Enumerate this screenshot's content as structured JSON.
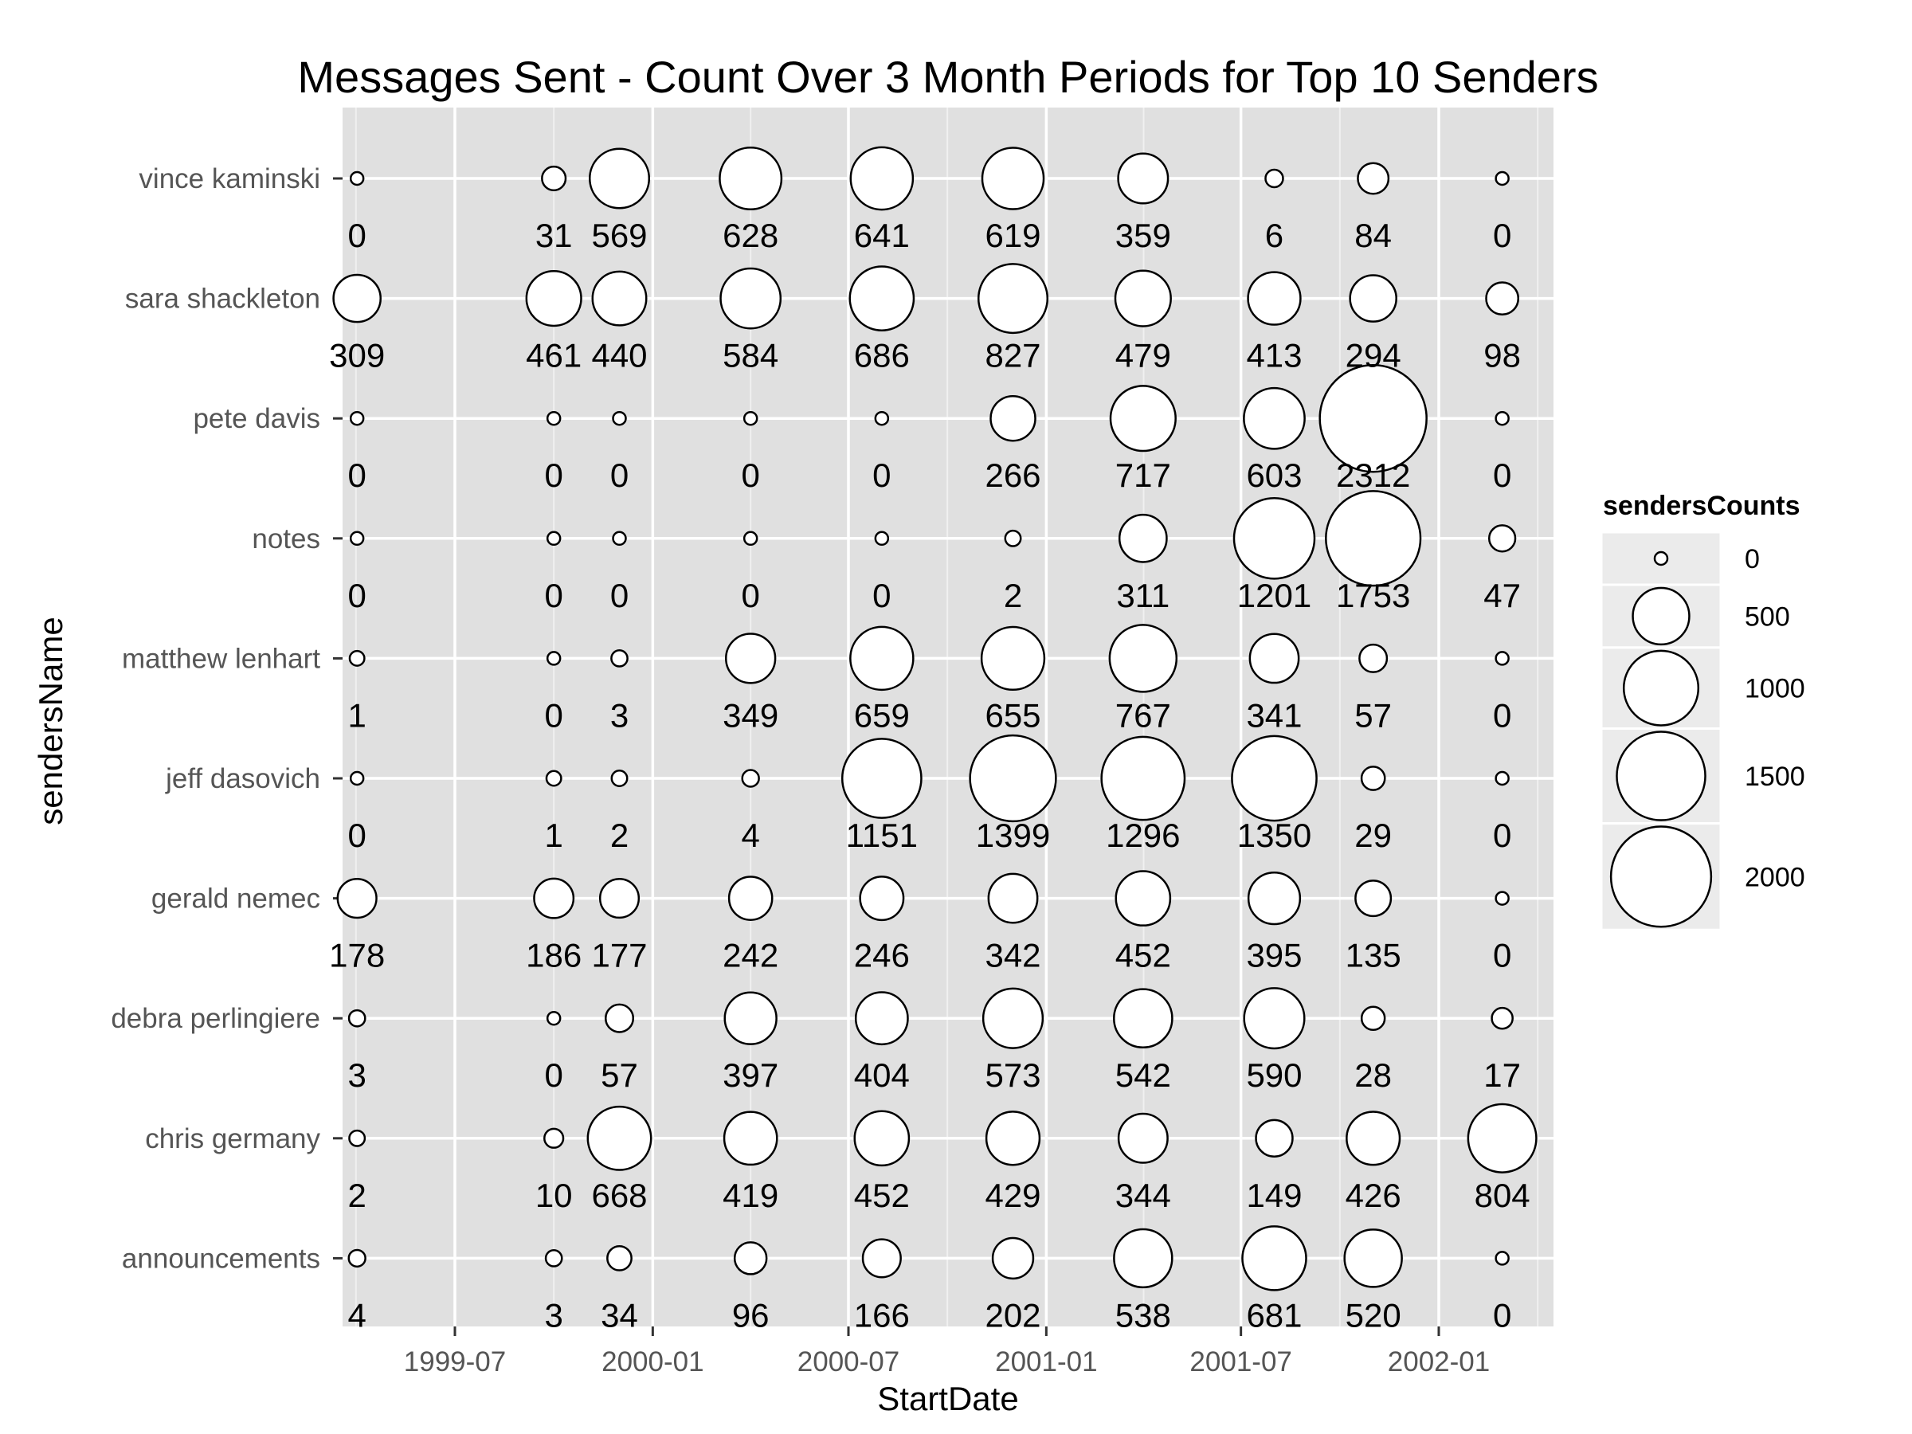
{
  "chart_data": {
    "type": "scatter",
    "title": "Messages Sent - Count Over 3 Month Periods for Top 10 Senders",
    "xlabel": "StartDate",
    "ylabel": "sendersName",
    "x_ticks": [
      "1999-07",
      "2000-01",
      "2000-07",
      "2001-01",
      "2001-07",
      "2002-01"
    ],
    "periods": [
      "1999-04",
      "1999-10",
      "1999-12",
      "2000-04",
      "2000-08",
      "2000-12",
      "2001-04",
      "2001-08",
      "2001-11",
      "2002-03"
    ],
    "senders": [
      {
        "name": "vince kaminski",
        "values": [
          0,
          31,
          569,
          628,
          641,
          619,
          359,
          6,
          84,
          0
        ]
      },
      {
        "name": "sara shackleton",
        "values": [
          309,
          461,
          440,
          584,
          686,
          827,
          479,
          413,
          294,
          98
        ]
      },
      {
        "name": "pete davis",
        "values": [
          0,
          0,
          0,
          0,
          0,
          266,
          717,
          603,
          2312,
          0
        ]
      },
      {
        "name": "notes",
        "values": [
          0,
          0,
          0,
          0,
          0,
          2,
          311,
          1201,
          1753,
          47
        ]
      },
      {
        "name": "matthew lenhart",
        "values": [
          1,
          0,
          3,
          349,
          659,
          655,
          767,
          341,
          57,
          0
        ]
      },
      {
        "name": "jeff dasovich",
        "values": [
          0,
          1,
          2,
          4,
          1151,
          1399,
          1296,
          1350,
          29,
          0
        ]
      },
      {
        "name": "gerald nemec",
        "values": [
          178,
          186,
          177,
          242,
          246,
          342,
          452,
          395,
          135,
          0
        ]
      },
      {
        "name": "debra perlingiere",
        "values": [
          3,
          0,
          57,
          397,
          404,
          573,
          542,
          590,
          28,
          17
        ]
      },
      {
        "name": "chris germany",
        "values": [
          2,
          10,
          668,
          419,
          452,
          429,
          344,
          149,
          426,
          804
        ]
      },
      {
        "name": "announcements",
        "values": [
          4,
          3,
          34,
          96,
          166,
          202,
          538,
          681,
          520,
          0
        ]
      }
    ],
    "size_legend": {
      "title": "sendersCounts",
      "values": [
        0,
        500,
        1000,
        1500,
        2000
      ],
      "labels": [
        "0",
        "500",
        "1000",
        "1500",
        "2000"
      ]
    },
    "grid": true,
    "legend_position": "right",
    "colors": {
      "panel": "#e0e0e0",
      "grid": "#ffffff",
      "point_fill": "#ffffff",
      "point_stroke": "#000000"
    }
  }
}
